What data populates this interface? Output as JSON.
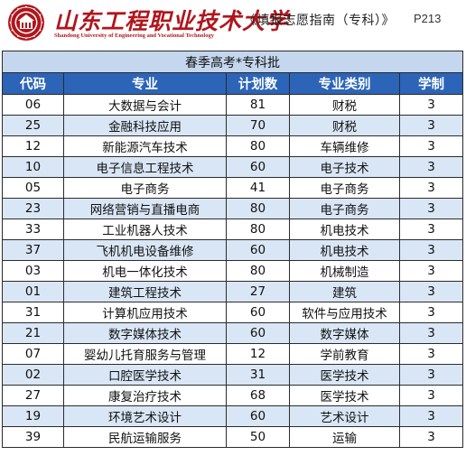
{
  "header": {
    "school_name": "山东工程职业技术大学",
    "school_name_en": "Shandong University of Engineering and Vocational Technology",
    "doc_title": "《填报志愿指南（专科）》",
    "page_number": "P213",
    "brand_color": "#b1151c"
  },
  "table": {
    "batch_title": "春季高考*专科批",
    "columns": [
      "代码",
      "专业",
      "计划数",
      "专业类别",
      "学制"
    ],
    "header_color": "#2c64b8",
    "stripe_color": "#d9e6f5",
    "rows": [
      [
        "06",
        "大数据与会计",
        "81",
        "财税",
        "3"
      ],
      [
        "25",
        "金融科技应用",
        "70",
        "财税",
        "3"
      ],
      [
        "12",
        "新能源汽车技术",
        "80",
        "车辆维修",
        "3"
      ],
      [
        "10",
        "电子信息工程技术",
        "60",
        "电子技术",
        "3"
      ],
      [
        "05",
        "电子商务",
        "41",
        "电子商务",
        "3"
      ],
      [
        "23",
        "网络营销与直播电商",
        "80",
        "电子商务",
        "3"
      ],
      [
        "33",
        "工业机器人技术",
        "80",
        "机电技术",
        "3"
      ],
      [
        "37",
        "飞机机电设备维修",
        "60",
        "机电技术",
        "3"
      ],
      [
        "03",
        "机电一体化技术",
        "80",
        "机械制造",
        "3"
      ],
      [
        "01",
        "建筑工程技术",
        "27",
        "建筑",
        "3"
      ],
      [
        "31",
        "计算机应用技术",
        "60",
        "软件与应用技术",
        "3"
      ],
      [
        "21",
        "数字媒体技术",
        "60",
        "数字媒体",
        "3"
      ],
      [
        "07",
        "婴幼儿托育服务与管理",
        "12",
        "学前教育",
        "3"
      ],
      [
        "02",
        "口腔医学技术",
        "31",
        "医学技术",
        "3"
      ],
      [
        "27",
        "康复治疗技术",
        "68",
        "医学技术",
        "3"
      ],
      [
        "19",
        "环境艺术设计",
        "60",
        "艺术设计",
        "3"
      ],
      [
        "39",
        "民航运输服务",
        "50",
        "运输",
        "3"
      ]
    ]
  }
}
